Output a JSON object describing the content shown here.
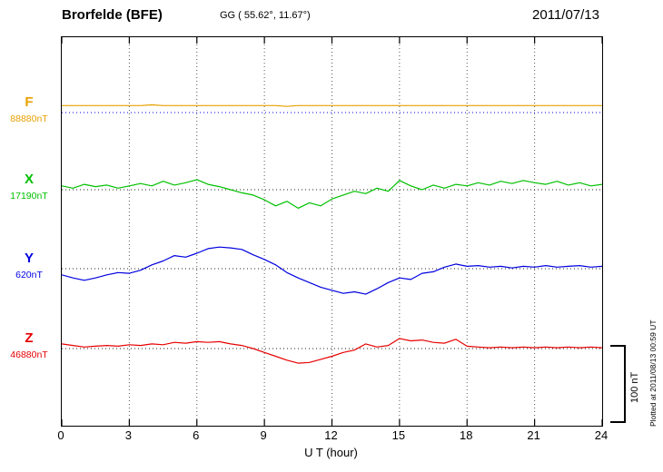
{
  "header": {
    "station": "Brorfelde (BFE)",
    "coords": "GG ( 55.62°,  11.67°)",
    "date": "2011/07/13"
  },
  "chart_data": {
    "type": "line",
    "title": "Brorfelde (BFE) magnetogram 2011/07/13",
    "x_label": "U T (hour)",
    "x_min": 0,
    "x_max": 24,
    "x_ticks": [
      0,
      3,
      6,
      9,
      12,
      15,
      18,
      21,
      24
    ],
    "step_hours": 0.5,
    "grid": "dotted vertical lines every 3 hours, dotted horizontal baseline per component",
    "grid_color": "#555555",
    "scale_bar_label": "100 nT",
    "scale_bar_nT": 100,
    "plot_note": "Plotted at 2011/08/13 00:59 UT",
    "units": "nT deviation from component baseline",
    "series": [
      {
        "name": "F",
        "baseline_label": "88880nT",
        "baseline_nT": 88880,
        "color": "#E8A000",
        "baseline_color": "#0000E0",
        "values": [
          9,
          9,
          9,
          9,
          9,
          9,
          9,
          9,
          10,
          9,
          9,
          9,
          9,
          9,
          9,
          9,
          9,
          9,
          9,
          9,
          8,
          9,
          9,
          9,
          9,
          9,
          9,
          9,
          9,
          9,
          9,
          9,
          9,
          9,
          9,
          9,
          9,
          9,
          9,
          9,
          9,
          9,
          9,
          9,
          9,
          9,
          9,
          9,
          9
        ]
      },
      {
        "name": "X",
        "baseline_label": "17190nT",
        "baseline_nT": 17190,
        "color": "#00C000",
        "baseline_color": "#222222",
        "values": [
          5,
          2,
          7,
          4,
          6,
          2,
          5,
          8,
          5,
          11,
          6,
          9,
          13,
          7,
          4,
          0,
          -4,
          -7,
          -13,
          -21,
          -15,
          -24,
          -17,
          -21,
          -12,
          -7,
          -2,
          -5,
          2,
          -2,
          12,
          5,
          0,
          6,
          2,
          7,
          5,
          9,
          6,
          11,
          8,
          12,
          9,
          7,
          11,
          6,
          9,
          5,
          7
        ]
      },
      {
        "name": "Y",
        "baseline_label": "620nT",
        "baseline_nT": 620,
        "color": "#0000E0",
        "baseline_color": "#222222",
        "values": [
          -8,
          -12,
          -15,
          -12,
          -8,
          -5,
          -6,
          -2,
          5,
          10,
          17,
          15,
          20,
          26,
          28,
          27,
          25,
          18,
          12,
          5,
          -5,
          -12,
          -18,
          -24,
          -28,
          -32,
          -30,
          -33,
          -26,
          -18,
          -12,
          -14,
          -6,
          -4,
          2,
          6,
          3,
          4,
          2,
          3,
          1,
          3,
          2,
          4,
          2,
          3,
          4,
          2,
          3
        ]
      },
      {
        "name": "Z",
        "baseline_label": "46880nT",
        "baseline_nT": 46880,
        "color": "#E80000",
        "baseline_color": "#222222",
        "values": [
          6,
          4,
          2,
          3,
          4,
          3,
          5,
          4,
          6,
          5,
          8,
          7,
          9,
          8,
          9,
          6,
          4,
          0,
          -5,
          -10,
          -15,
          -19,
          -18,
          -14,
          -10,
          -5,
          -2,
          6,
          2,
          4,
          13,
          10,
          11,
          8,
          7,
          12,
          3,
          2,
          1,
          2,
          1,
          2,
          1,
          2,
          1,
          2,
          1,
          2,
          1
        ]
      }
    ]
  }
}
